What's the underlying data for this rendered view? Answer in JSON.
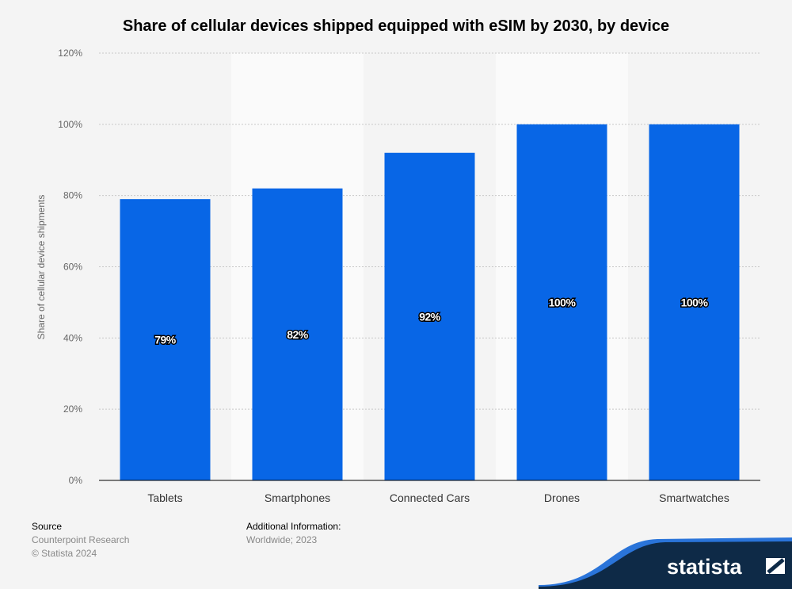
{
  "chart_data": {
    "type": "bar",
    "title": "Share of cellular devices shipped equipped with eSIM by 2030, by device",
    "xlabel": "",
    "ylabel": "Share of cellular device shipments",
    "categories": [
      "Tablets",
      "Smartphones",
      "Connected Cars",
      "Drones",
      "Smartwatches"
    ],
    "values": [
      79,
      82,
      92,
      100,
      100
    ],
    "data_labels": [
      "79%",
      "82%",
      "92%",
      "100%",
      "100%"
    ],
    "ylim": [
      0,
      120
    ],
    "yticks": [
      "0%",
      "20%",
      "40%",
      "60%",
      "80%",
      "100%",
      "120%"
    ],
    "grid": true,
    "bar_color": "#0866e6"
  },
  "footer": {
    "source_label": "Source",
    "source": "Counterpoint Research",
    "copyright": "© Statista 2024",
    "additional_label": "Additional Information:",
    "additional": "Worldwide; 2023"
  },
  "logo": "statista"
}
